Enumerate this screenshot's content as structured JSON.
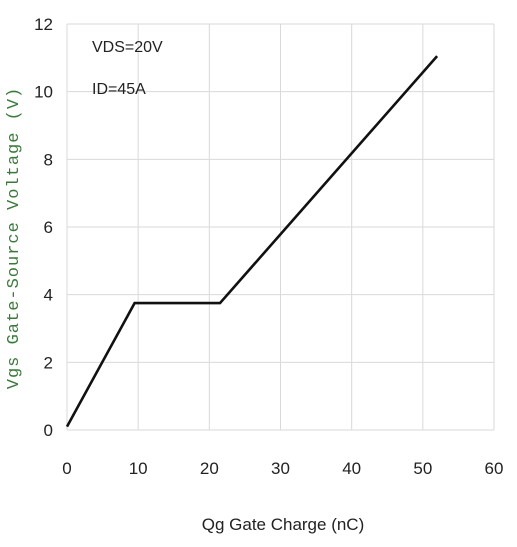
{
  "chart_data": {
    "type": "line",
    "title": "",
    "xlabel": "Qg Gate Charge (nC)",
    "ylabel": "Vgs Gate-Source Voltage (V)",
    "xlim": [
      0,
      60
    ],
    "ylim": [
      0,
      12
    ],
    "xticks": [
      0,
      10,
      20,
      30,
      40,
      50,
      60
    ],
    "yticks": [
      0,
      2,
      4,
      6,
      8,
      10,
      12
    ],
    "grid": true,
    "legend": "none",
    "annotations": [
      "VDS=20V",
      "ID=45A"
    ],
    "series": [
      {
        "x": [
          0,
          9.5,
          21.5,
          52
        ],
        "y": [
          0.1,
          3.75,
          3.75,
          11.05
        ],
        "color": "#111111"
      }
    ],
    "colors": {
      "line": "#111111",
      "grid": "#d9d9d9",
      "ylabel": "#3a7a3a"
    }
  }
}
